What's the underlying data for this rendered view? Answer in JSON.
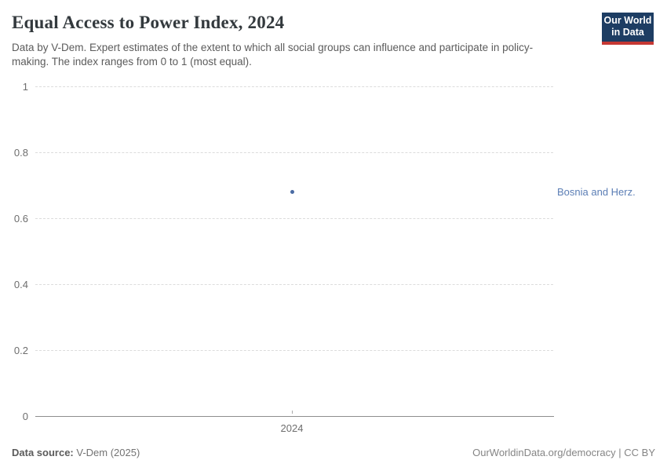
{
  "header": {
    "title": "Equal Access to Power Index, 2024",
    "subtitle": "Data by V-Dem. Expert estimates of the extent to which all social groups can influence and participate in policy-making. The index ranges from 0 to 1 (most equal)."
  },
  "logo": {
    "line1": "Our World",
    "line2": "in Data",
    "bg_color": "#1d3d63",
    "bar_color": "#c53833"
  },
  "chart_data": {
    "type": "scatter",
    "title": "Equal Access to Power Index, 2024",
    "x": [
      2024
    ],
    "series": [
      {
        "name": "Bosnia and Herz.",
        "values": [
          0.68
        ],
        "point_color": "#4a6ba3",
        "label_color": "#5b7eb5"
      }
    ],
    "ylim": [
      0,
      1
    ],
    "yticks": [
      0,
      0.2,
      0.4,
      0.6,
      0.8,
      1
    ],
    "ytick_labels": [
      "0",
      "0.2",
      "0.4",
      "0.6",
      "0.8",
      "1"
    ],
    "xtick_labels": [
      "2024"
    ],
    "xlabel": "",
    "ylabel": "",
    "grid": "horizontal-dashed",
    "legend_position": "right-of-point"
  },
  "footer": {
    "source_label": "Data source:",
    "source_value": " V-Dem (2025)",
    "right_text": "OurWorldinData.org/democracy | CC BY"
  }
}
